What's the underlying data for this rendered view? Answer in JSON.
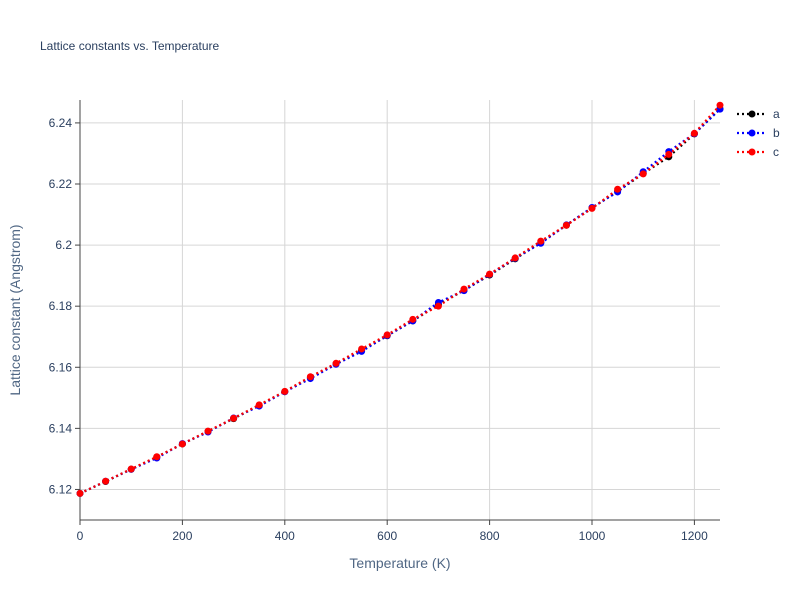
{
  "chart_data": {
    "type": "line",
    "title": "Lattice constants vs. Temperature",
    "xlabel": "Temperature (K)",
    "ylabel": "Lattice constant (Angstrom)",
    "xlim": [
      0,
      1250
    ],
    "ylim": [
      6.11,
      6.2475
    ],
    "x_ticks": [
      0,
      200,
      400,
      600,
      800,
      1000,
      1200
    ],
    "x_tick_labels": [
      "0",
      "200",
      "400",
      "600",
      "800",
      "1000",
      "1200"
    ],
    "y_ticks": [
      6.12,
      6.14,
      6.16,
      6.18,
      6.2,
      6.22,
      6.24
    ],
    "y_tick_labels": [
      "6.12",
      "6.14",
      "6.16",
      "6.18",
      "6.2",
      "6.22",
      "6.24"
    ],
    "grid": true,
    "legend_position": "top-right",
    "x": [
      0,
      50,
      100,
      150,
      200,
      250,
      300,
      350,
      400,
      450,
      500,
      550,
      600,
      650,
      700,
      750,
      800,
      850,
      900,
      950,
      1000,
      1050,
      1100,
      1150,
      1200,
      1250
    ],
    "series": [
      {
        "name": "a",
        "color": "#000000",
        "line_style": "dot",
        "marker": "circle",
        "values": [
          6.1187,
          6.1226,
          6.1266,
          6.1306,
          6.1349,
          6.139,
          6.1432,
          6.1475,
          6.152,
          6.1566,
          6.1611,
          6.1654,
          6.1703,
          6.1752,
          6.1805,
          6.1852,
          6.1902,
          6.1955,
          6.2009,
          6.2065,
          6.2122,
          6.2176,
          6.2234,
          6.2289,
          6.2364,
          6.2446
        ]
      },
      {
        "name": "b",
        "color": "#0000ff",
        "line_style": "dot",
        "marker": "circle",
        "values": [
          6.1187,
          6.1227,
          6.1266,
          6.1303,
          6.135,
          6.1388,
          6.1434,
          6.1473,
          6.152,
          6.1563,
          6.161,
          6.1652,
          6.1704,
          6.1752,
          6.1812,
          6.1851,
          6.1904,
          6.1957,
          6.2006,
          6.2066,
          6.2123,
          6.2174,
          6.224,
          6.2306,
          6.2365,
          6.2445
        ]
      },
      {
        "name": "c",
        "color": "#ff0000",
        "line_style": "dot",
        "marker": "circle",
        "values": [
          6.1187,
          6.1227,
          6.1267,
          6.1307,
          6.1349,
          6.1391,
          6.1433,
          6.1477,
          6.1521,
          6.1569,
          6.1613,
          6.166,
          6.1706,
          6.1757,
          6.18,
          6.1856,
          6.1905,
          6.1958,
          6.2013,
          6.2065,
          6.212,
          6.2183,
          6.2233,
          6.2297,
          6.2366,
          6.2458
        ]
      }
    ]
  }
}
